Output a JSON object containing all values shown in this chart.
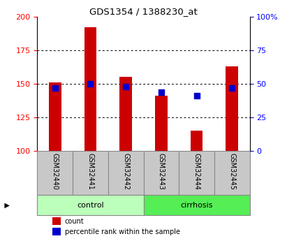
{
  "title": "GDS1354 / 1388230_at",
  "samples": [
    "GSM32440",
    "GSM32441",
    "GSM32442",
    "GSM32443",
    "GSM32444",
    "GSM32445"
  ],
  "counts": [
    151,
    192,
    155,
    141,
    115,
    163
  ],
  "percentiles": [
    47,
    50,
    48,
    44,
    41,
    47
  ],
  "ylim_left": [
    100,
    200
  ],
  "ylim_right": [
    0,
    100
  ],
  "yticks_left": [
    100,
    125,
    150,
    175,
    200
  ],
  "yticks_right": [
    0,
    25,
    50,
    75,
    100
  ],
  "ytick_labels_right": [
    "0",
    "25",
    "50",
    "75",
    "100%"
  ],
  "bar_color": "#CC0000",
  "scatter_color": "#0000CC",
  "bar_width": 0.35,
  "groups": [
    {
      "label": "control",
      "indices": [
        0,
        1,
        2
      ],
      "color": "#BBFFBB"
    },
    {
      "label": "cirrhosis",
      "indices": [
        3,
        4,
        5
      ],
      "color": "#55EE55"
    }
  ],
  "legend_count_label": "count",
  "legend_percentile_label": "percentile rank within the sample",
  "grid_color": "black",
  "plot_bg": "white",
  "tick_area_bg": "#C8C8C8",
  "group_area_bg_left": "#BBFFBB",
  "group_area_bg_right": "#55EE55",
  "fig_bg": "#F0F0F0"
}
